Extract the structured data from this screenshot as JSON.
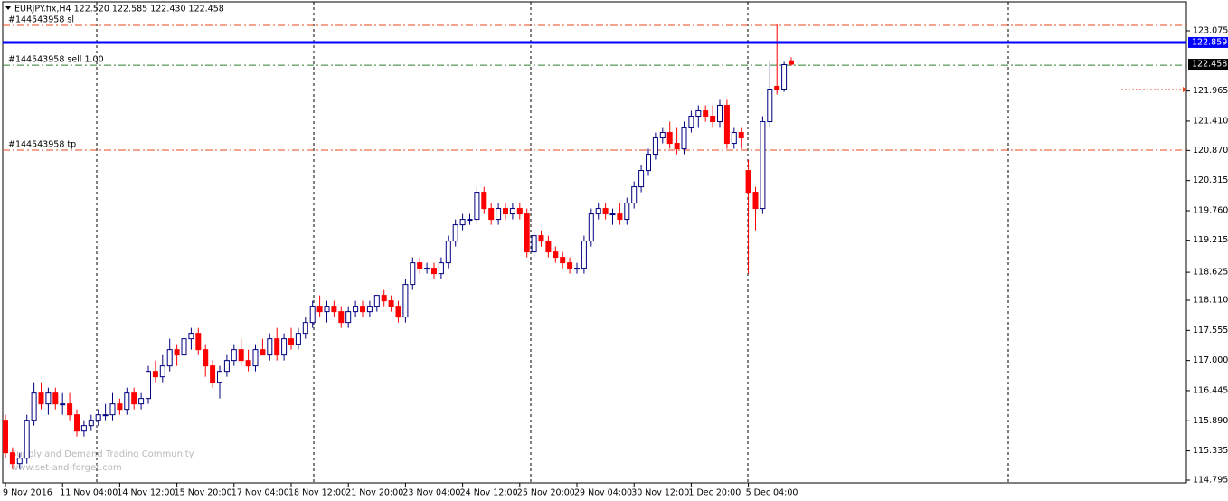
{
  "chart_data": {
    "type": "candlestick",
    "title": "EURJPY.fix,H4  122.520 122.585 122.430 122.458",
    "watermark": [
      "Supply and Demand Trading Community",
      "www.set-and-forget.com"
    ],
    "categories": [
      "9 Nov 2016",
      null,
      null,
      null,
      null,
      null,
      null,
      null,
      "11 Nov 04:00",
      null,
      null,
      null,
      null,
      null,
      null,
      null,
      "14 Nov 12:00",
      null,
      null,
      null,
      null,
      null,
      null,
      null,
      "15 Nov 20:00",
      null,
      null,
      null,
      null,
      null,
      null,
      null,
      "17 Nov 04:00",
      null,
      null,
      null,
      null,
      null,
      null,
      null,
      "18 Nov 12:00",
      null,
      null,
      null,
      null,
      null,
      null,
      null,
      "21 Nov 20:00",
      null,
      null,
      null,
      null,
      null,
      null,
      null,
      "23 Nov 04:00",
      null,
      null,
      null,
      null,
      null,
      null,
      null,
      "24 Nov 12:00",
      null,
      null,
      null,
      null,
      null,
      null,
      null,
      "25 Nov 20:00",
      null,
      null,
      null,
      null,
      null,
      null,
      null,
      "29 Nov 04:00",
      null,
      null,
      null,
      null,
      null,
      null,
      null,
      "30 Nov 12:00",
      null,
      null,
      null,
      null,
      null,
      null,
      null,
      "1 Dec 20:00",
      null,
      null,
      null,
      null,
      null,
      null,
      null,
      "5 Dec 04:00",
      null,
      null,
      null,
      null,
      null,
      null
    ],
    "open": [
      115.9,
      115.3,
      115.1,
      115.2,
      115.9,
      116.4,
      116.2,
      116.4,
      116.2,
      116.2,
      116.0,
      115.7,
      115.8,
      115.9,
      116.0,
      116.0,
      116.2,
      116.1,
      116.4,
      116.2,
      116.3,
      116.8,
      116.7,
      116.9,
      117.2,
      117.1,
      117.4,
      117.5,
      117.2,
      116.9,
      116.6,
      116.8,
      117.0,
      117.2,
      117.0,
      116.9,
      117.2,
      117.1,
      117.4,
      117.1,
      117.4,
      117.3,
      117.5,
      117.7,
      118.0,
      117.9,
      118.0,
      117.9,
      117.7,
      117.9,
      118.0,
      117.9,
      118.0,
      118.2,
      118.1,
      118.0,
      117.8,
      118.4,
      118.8,
      118.7,
      118.7,
      118.6,
      118.8,
      119.2,
      119.5,
      119.6,
      119.6,
      120.1,
      119.8,
      119.6,
      119.8,
      119.7,
      119.8,
      119.7,
      119.0,
      119.3,
      119.2,
      119.0,
      118.9,
      118.8,
      118.7,
      118.7,
      119.2,
      119.7,
      119.8,
      119.7,
      119.7,
      119.6,
      119.9,
      120.2,
      120.5,
      120.8,
      121.1,
      121.2,
      121.0,
      120.9,
      121.3,
      121.5,
      121.6,
      121.5,
      121.4,
      121.7,
      121.0,
      121.2,
      120.5,
      120.1,
      119.8,
      121.4,
      122.05,
      122.0,
      122.52
    ],
    "high": [
      116.0,
      115.4,
      115.3,
      116.0,
      116.6,
      116.6,
      116.5,
      116.5,
      116.4,
      116.4,
      116.1,
      115.9,
      116.0,
      116.1,
      116.2,
      116.4,
      116.3,
      116.5,
      116.5,
      116.4,
      116.9,
      117.0,
      117.1,
      117.4,
      117.3,
      117.5,
      117.6,
      117.6,
      117.3,
      117.0,
      116.9,
      117.1,
      117.3,
      117.4,
      117.2,
      117.3,
      117.4,
      117.5,
      117.6,
      117.5,
      117.6,
      117.6,
      117.8,
      118.1,
      118.2,
      118.1,
      118.1,
      118.0,
      118.0,
      118.1,
      118.1,
      118.1,
      118.2,
      118.3,
      118.2,
      118.1,
      118.5,
      118.9,
      118.9,
      118.8,
      118.8,
      118.9,
      119.3,
      119.6,
      119.7,
      119.7,
      120.2,
      120.2,
      119.9,
      119.9,
      119.9,
      119.9,
      119.9,
      119.8,
      119.4,
      119.4,
      119.3,
      119.1,
      119.0,
      118.9,
      118.8,
      119.3,
      119.8,
      119.9,
      119.9,
      119.8,
      119.9,
      120.0,
      120.3,
      120.6,
      120.9,
      121.2,
      121.3,
      121.4,
      121.3,
      121.4,
      121.6,
      121.7,
      121.7,
      121.7,
      121.8,
      121.8,
      121.3,
      121.3,
      120.7,
      120.2,
      121.5,
      122.5,
      123.2,
      122.5,
      122.585
    ],
    "low": [
      115.2,
      115.0,
      115.0,
      115.1,
      115.8,
      116.1,
      116.0,
      116.1,
      116.0,
      115.9,
      115.6,
      115.6,
      115.7,
      115.8,
      115.9,
      115.9,
      116.0,
      116.0,
      116.1,
      116.1,
      116.2,
      116.6,
      116.6,
      116.8,
      116.9,
      117.0,
      117.2,
      117.1,
      116.7,
      116.5,
      116.3,
      116.7,
      116.9,
      116.9,
      116.8,
      116.8,
      117.1,
      117.0,
      117.0,
      117.0,
      117.2,
      117.2,
      117.4,
      117.6,
      117.8,
      117.7,
      117.8,
      117.6,
      117.6,
      117.8,
      117.8,
      117.8,
      117.9,
      118.0,
      117.9,
      117.7,
      117.7,
      118.3,
      118.6,
      118.6,
      118.5,
      118.5,
      118.7,
      119.1,
      119.4,
      119.5,
      119.5,
      119.7,
      119.5,
      119.5,
      119.6,
      119.6,
      119.6,
      118.9,
      118.9,
      119.1,
      118.9,
      118.8,
      118.7,
      118.6,
      118.6,
      118.6,
      119.1,
      119.6,
      119.6,
      119.5,
      119.5,
      119.5,
      119.8,
      120.1,
      120.4,
      120.7,
      121.0,
      120.9,
      120.8,
      120.8,
      121.2,
      121.3,
      121.4,
      121.3,
      121.3,
      120.9,
      120.9,
      120.9,
      118.6,
      119.4,
      119.7,
      121.3,
      121.9,
      121.95,
      122.43
    ],
    "close": [
      115.3,
      115.1,
      115.2,
      115.9,
      116.4,
      116.2,
      116.4,
      116.2,
      116.2,
      116.0,
      115.7,
      115.8,
      115.9,
      116.0,
      116.0,
      116.2,
      116.1,
      116.4,
      116.2,
      116.3,
      116.8,
      116.7,
      116.9,
      117.2,
      117.1,
      117.4,
      117.5,
      117.2,
      116.9,
      116.6,
      116.8,
      117.0,
      117.2,
      117.0,
      116.9,
      117.2,
      117.1,
      117.4,
      117.1,
      117.4,
      117.3,
      117.5,
      117.7,
      118.0,
      117.9,
      118.0,
      117.9,
      117.7,
      117.9,
      118.0,
      117.9,
      118.0,
      118.2,
      118.1,
      118.0,
      117.8,
      118.4,
      118.8,
      118.7,
      118.7,
      118.6,
      118.8,
      119.2,
      119.5,
      119.6,
      119.6,
      120.1,
      119.8,
      119.6,
      119.8,
      119.7,
      119.8,
      119.7,
      119.0,
      119.3,
      119.2,
      119.0,
      118.9,
      118.8,
      118.7,
      118.7,
      119.2,
      119.7,
      119.8,
      119.7,
      119.7,
      119.6,
      119.9,
      120.2,
      120.5,
      120.8,
      121.1,
      121.2,
      121.0,
      120.9,
      121.3,
      121.5,
      121.6,
      121.5,
      121.4,
      121.7,
      121.0,
      121.2,
      121.1,
      120.1,
      119.8,
      121.4,
      122.0,
      122.0,
      122.45,
      122.458
    ],
    "up_color": "#000080",
    "down_color": "#ff0000",
    "ylim": [
      114.745,
      123.608
    ],
    "yticks": [
      123.075,
      121.965,
      {
        "value": 121.41,
        "label": "121.410"
      },
      {
        "value": 120.87,
        "label": "120.870"
      },
      120.315,
      {
        "value": 119.76,
        "label": "119.760"
      },
      119.215,
      118.625,
      {
        "value": 118.11,
        "label": "118.110"
      },
      117.555,
      {
        "value": 117.0,
        "label": "117.000"
      },
      116.445,
      {
        "value": 115.89,
        "label": "115.890"
      },
      115.335,
      114.795
    ],
    "levels": [
      {
        "label": "#144543958 sl",
        "value": 123.175,
        "color": "#e8481c"
      },
      {
        "label": "#144543958 sell 1.00",
        "value": 122.44,
        "color": "#2e7d32"
      },
      {
        "label": "#144543958 tp",
        "value": 120.875,
        "color": "#e8481c"
      }
    ],
    "price_markers": [
      {
        "value": 122.859,
        "color": "#0000ff",
        "line": true
      },
      {
        "value": 122.458,
        "color": "#000000",
        "line": false
      }
    ]
  }
}
